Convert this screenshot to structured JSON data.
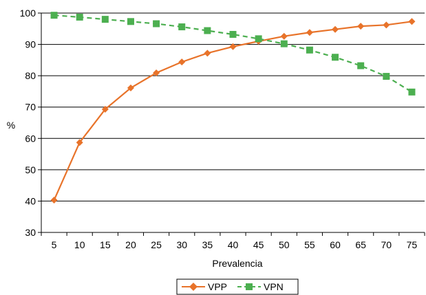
{
  "chart_data": {
    "type": "line",
    "xlabel": "Prevalencia",
    "ylabel": "%",
    "x": [
      5,
      10,
      15,
      20,
      25,
      30,
      35,
      40,
      45,
      50,
      55,
      60,
      65,
      70,
      75
    ],
    "x_ticks": [
      "5",
      "10",
      "15",
      "20",
      "25",
      "30",
      "35",
      "40",
      "45",
      "50",
      "55",
      "60",
      "65",
      "70",
      "75"
    ],
    "ylim": [
      30,
      100
    ],
    "y_ticks": [
      30,
      40,
      50,
      60,
      70,
      80,
      90,
      100
    ],
    "y_tick_labels": [
      "30",
      "40",
      "50",
      "60",
      "70",
      "80",
      "90",
      "100"
    ],
    "grid": "horizontal",
    "legend_position": "bottom-center",
    "series": [
      {
        "name": "VPP",
        "color": "#e8732a",
        "marker": "diamond",
        "line_style": "solid",
        "values": [
          40.3,
          58.7,
          69.3,
          76.1,
          80.9,
          84.4,
          87.2,
          89.3,
          91.0,
          92.6,
          93.8,
          94.8,
          95.8,
          96.2,
          97.3
        ]
      },
      {
        "name": "VPN",
        "color": "#4caf50",
        "marker": "square",
        "line_style": "dashed",
        "values": [
          99.3,
          98.7,
          98.0,
          97.3,
          96.6,
          95.6,
          94.4,
          93.2,
          91.8,
          90.2,
          88.2,
          85.9,
          83.2,
          79.8,
          74.8
        ]
      }
    ]
  }
}
